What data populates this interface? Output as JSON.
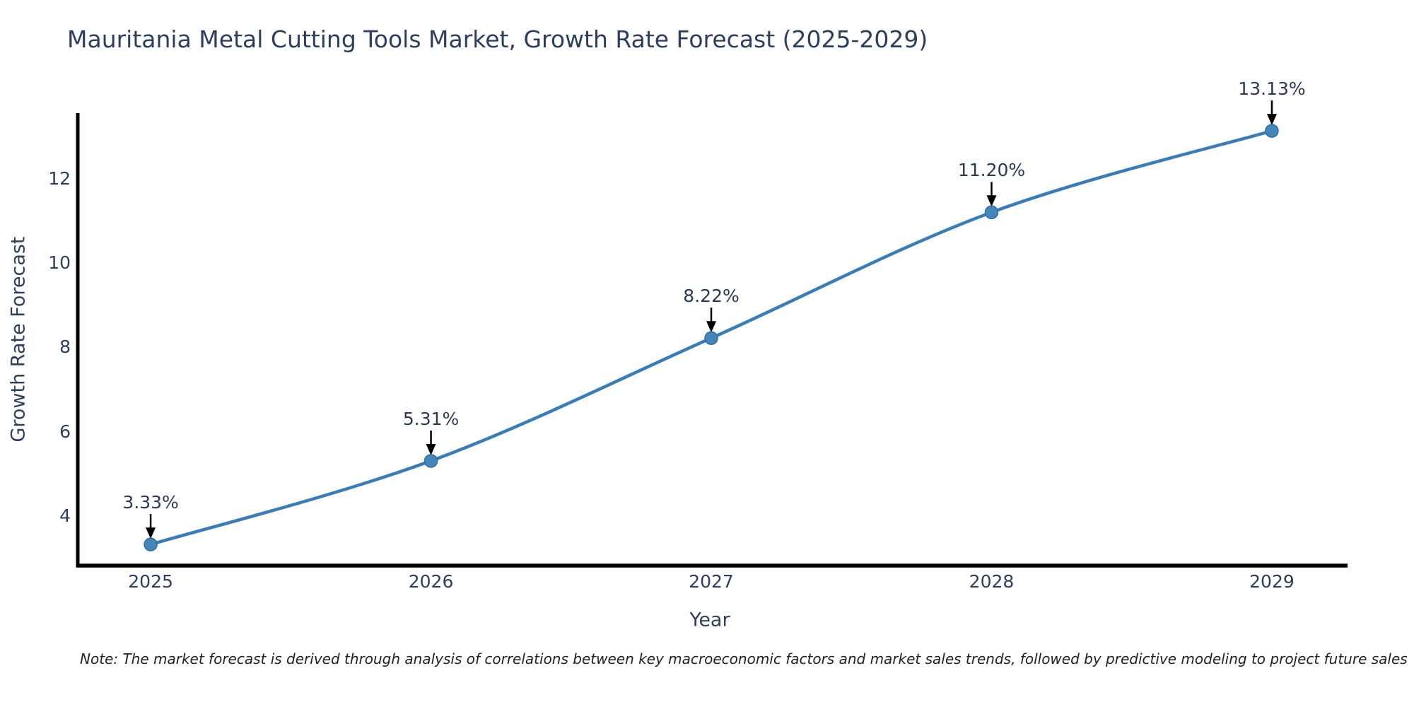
{
  "note": "Note: The market forecast is derived through analysis of correlations between key macroeconomic factors and market sales trends, followed by predictive modeling to project future sales",
  "colors": {
    "line": "#3a7cb8",
    "marker_fill": "#4585b8",
    "marker_edge": "#2f6ba3",
    "axis": "#000000",
    "text": "#2e3f5c",
    "annotation_text": "#2b3a52",
    "arrow": "#000000",
    "background": "#ffffff"
  },
  "chart_data": {
    "type": "line",
    "title": "Mauritania Metal Cutting Tools Market, Growth Rate Forecast (2025-2029)",
    "xlabel": "Year",
    "ylabel": "Growth Rate Forecast",
    "x": [
      2025,
      2026,
      2027,
      2028,
      2029
    ],
    "categories": [
      "2025",
      "2026",
      "2027",
      "2028",
      "2029"
    ],
    "values": [
      3.33,
      5.31,
      8.22,
      11.2,
      13.13
    ],
    "point_labels": [
      "3.33%",
      "5.31%",
      "8.22%",
      "11.20%",
      "13.13%"
    ],
    "yticks": [
      4,
      6,
      8,
      10,
      12
    ],
    "xlim": [
      2024.74,
      2029.27
    ],
    "ylim": [
      2.83,
      13.55
    ],
    "grid": false,
    "legend": false,
    "line_shape": "spline",
    "marker": "circle",
    "annotations_have_arrows": true
  }
}
